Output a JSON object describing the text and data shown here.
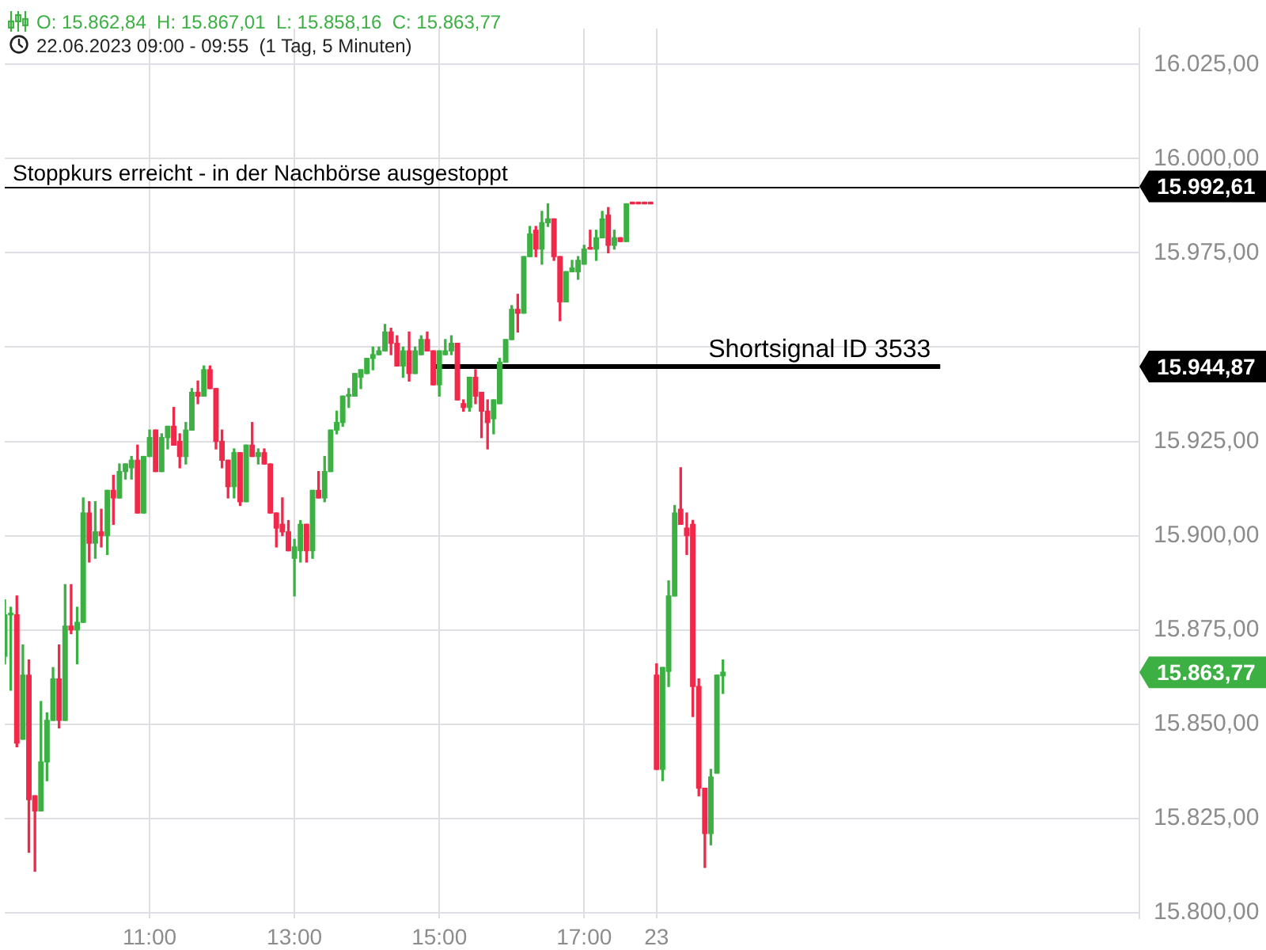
{
  "chart_data": {
    "type": "candlestick",
    "title": "O: 15.862,84  H: 15.867,01  L: 15.858,16  C: 15.863,77",
    "subtitle": "22.06.2023 09:00 - 09:55  (1 Tag, 5 Minuten)",
    "categories": [
      null,
      null,
      null,
      null,
      null,
      null,
      null,
      null,
      null,
      null,
      null,
      null,
      null,
      null,
      null,
      null,
      null,
      null,
      null,
      null,
      null,
      null,
      null,
      null,
      "11:00",
      null,
      null,
      null,
      null,
      null,
      null,
      null,
      null,
      null,
      null,
      null,
      null,
      null,
      null,
      null,
      null,
      null,
      null,
      null,
      null,
      null,
      null,
      null,
      "13:00",
      null,
      null,
      null,
      null,
      null,
      null,
      null,
      null,
      null,
      null,
      null,
      null,
      null,
      null,
      null,
      null,
      null,
      null,
      null,
      null,
      null,
      null,
      null,
      "15:00",
      null,
      null,
      null,
      null,
      null,
      null,
      null,
      null,
      null,
      null,
      null,
      null,
      null,
      null,
      null,
      null,
      null,
      null,
      null,
      null,
      null,
      null,
      null,
      "17:00",
      null,
      null,
      null,
      null,
      null,
      null,
      null,
      null,
      null,
      null,
      null,
      "23",
      null,
      null,
      null,
      null,
      null,
      null,
      null,
      null,
      null,
      null,
      null,
      null,
      null,
      null,
      null,
      null,
      null,
      null,
      null,
      null,
      null,
      null,
      null,
      null,
      null,
      null,
      null,
      null,
      null,
      null,
      null,
      null,
      null,
      null,
      null,
      null,
      null,
      null,
      null,
      null,
      null,
      null,
      null,
      null,
      null,
      null,
      null,
      null,
      null,
      null,
      null,
      null,
      null,
      null,
      null,
      null,
      null,
      null,
      null,
      null,
      null,
      null,
      null,
      null,
      null,
      null,
      null,
      null,
      null,
      null,
      null,
      null,
      null,
      null,
      null,
      null,
      null,
      null,
      null,
      null
    ],
    "ohlc": [
      [
        15868,
        15883,
        15866,
        15879
      ],
      [
        15879,
        15881,
        15859,
        15879
      ],
      [
        15879,
        15884,
        15844,
        15845
      ],
      [
        15846,
        15871,
        15846,
        15863
      ],
      [
        15863,
        15867,
        15816,
        15830
      ],
      [
        15831,
        15831,
        15811,
        15827
      ],
      [
        15827,
        15856,
        15827,
        15840
      ],
      [
        15840,
        15853,
        15835,
        15851
      ],
      [
        15851,
        15865,
        15851,
        15862
      ],
      [
        15862,
        15871,
        15849,
        15851
      ],
      [
        15851,
        15887,
        15851,
        15876
      ],
      [
        15876,
        15887,
        15874,
        15875
      ],
      [
        15875,
        15881,
        15866,
        15877
      ],
      [
        15877,
        15910,
        15877,
        15906
      ],
      [
        15906,
        15909,
        15893,
        15898
      ],
      [
        15898,
        15909,
        15894,
        15901
      ],
      [
        15901,
        15907,
        15897,
        15900
      ],
      [
        15900,
        15912,
        15895,
        15912
      ],
      [
        15912,
        15916,
        15903,
        15910
      ],
      [
        15910,
        15919,
        15910,
        15917
      ],
      [
        15917,
        15919,
        15915,
        15919
      ],
      [
        15918,
        15921,
        15915,
        15920
      ],
      [
        15920,
        15924,
        15906,
        15906
      ],
      [
        15906,
        15921,
        15906,
        15921
      ],
      [
        15921,
        15928,
        15921,
        15926
      ],
      [
        15928,
        15928,
        15917,
        15917
      ],
      [
        15917,
        15927,
        15917,
        15926
      ],
      [
        15926,
        15929,
        15923,
        15929
      ],
      [
        15929,
        15934,
        15924,
        15924
      ],
      [
        15925,
        15927,
        15918,
        15921
      ],
      [
        15921,
        15930,
        15919,
        15928
      ],
      [
        15928,
        15939,
        15928,
        15938
      ],
      [
        15938,
        15941,
        15935,
        15937
      ],
      [
        15937,
        15945,
        15937,
        15944
      ],
      [
        15944,
        15945,
        15939,
        15939
      ],
      [
        15939,
        15939,
        15923,
        15925
      ],
      [
        15925,
        15928,
        15918,
        15920
      ],
      [
        15920,
        15920,
        15910,
        15913
      ],
      [
        15913,
        15923,
        15910,
        15922
      ],
      [
        15922,
        15922,
        15908,
        15909
      ],
      [
        15909,
        15924,
        15909,
        15924
      ],
      [
        15924,
        15930,
        15921,
        15921
      ],
      [
        15921,
        15923,
        15919,
        15922
      ],
      [
        15922,
        15923,
        15919,
        15919
      ],
      [
        15919,
        15919,
        15906,
        15906
      ],
      [
        15906,
        15906,
        15897,
        15902
      ],
      [
        15903,
        15910,
        15900,
        15901
      ],
      [
        15901,
        15904,
        15896,
        15896
      ],
      [
        15894,
        15899,
        15884,
        15897
      ],
      [
        15896,
        15904,
        15893,
        15903
      ],
      [
        15903,
        15903,
        15893,
        15896
      ],
      [
        15896,
        15912,
        15894,
        15912
      ],
      [
        15912,
        15917,
        15910,
        15910
      ],
      [
        15910,
        15921,
        15909,
        15917
      ],
      [
        15917,
        15928,
        15917,
        15928
      ],
      [
        15928,
        15933,
        15927,
        15930
      ],
      [
        15930,
        15937,
        15929,
        15937
      ],
      [
        15937,
        15939,
        15934,
        15937
      ],
      [
        15937,
        15943,
        15937,
        15943
      ],
      [
        15942,
        15944,
        15939,
        15944
      ],
      [
        15943,
        15947,
        15943,
        15947
      ],
      [
        15947,
        15950,
        15944,
        15948
      ],
      [
        15948,
        15950,
        15948,
        15949
      ],
      [
        15949,
        15956,
        15949,
        15954
      ],
      [
        15954,
        15955,
        15948,
        15951
      ],
      [
        15951,
        15953,
        15945,
        15945
      ],
      [
        15945,
        15950,
        15942,
        15949
      ],
      [
        15949,
        15954,
        15941,
        15943
      ],
      [
        15943,
        15950,
        15943,
        15949
      ],
      [
        15948,
        15953,
        15948,
        15952
      ],
      [
        15952,
        15954,
        15949,
        15949
      ],
      [
        15949,
        15949,
        15940,
        15940
      ],
      [
        15940,
        15949,
        15937,
        15949
      ],
      [
        15948,
        15952,
        15948,
        15949
      ],
      [
        15949,
        15953,
        15948,
        15951
      ],
      [
        15951,
        15951,
        15936,
        15936
      ],
      [
        15935,
        15936,
        15933,
        15934
      ],
      [
        15934,
        15942,
        15933,
        15942
      ],
      [
        15942,
        15944,
        15935,
        15937
      ],
      [
        15938,
        15938,
        15926,
        15933
      ],
      [
        15933,
        15936,
        15923,
        15930
      ],
      [
        15931,
        15936,
        15927,
        15936
      ],
      [
        15935,
        15947,
        15935,
        15946
      ],
      [
        15946,
        15952,
        15946,
        15952
      ],
      [
        15952,
        15961,
        15952,
        15960
      ],
      [
        15960,
        15964,
        15954,
        15959
      ],
      [
        15959,
        15974,
        15959,
        15974
      ],
      [
        15974,
        15982,
        15974,
        15980
      ],
      [
        15981,
        15982,
        15974,
        15976
      ],
      [
        15976,
        15986,
        15972,
        15983
      ],
      [
        15983,
        15988,
        15982,
        15984
      ],
      [
        15984,
        15984,
        15973,
        15974
      ],
      [
        15974,
        15974,
        15957,
        15962
      ],
      [
        15962,
        15970,
        15962,
        15970
      ],
      [
        15970,
        15973,
        15970,
        15971
      ],
      [
        15970,
        15974,
        15968,
        15973
      ],
      [
        15972,
        15977,
        15972,
        15976
      ],
      [
        15976,
        15981,
        15976,
        15976
      ],
      [
        15976,
        15981,
        15973,
        15979
      ],
      [
        15979,
        15986,
        15979,
        15984
      ],
      [
        15985,
        15987,
        15975,
        15977
      ],
      [
        15977,
        15981,
        15976,
        15979
      ],
      [
        15979,
        15979,
        15978,
        15978
      ],
      [
        15978,
        15988,
        15978,
        15988
      ],
      [
        15988,
        15988,
        15988,
        15988
      ],
      [
        15988,
        15988,
        15988,
        15988
      ],
      [
        15988,
        15988,
        15988,
        15988
      ],
      [
        15988,
        15988,
        15988,
        15988
      ],
      [
        15863,
        15866,
        15838,
        15838
      ],
      [
        15838,
        15865,
        15835,
        15865
      ],
      [
        15864,
        15888,
        15860,
        15884
      ],
      [
        15884,
        15908,
        15884,
        15906
      ],
      [
        15907,
        15918,
        15903,
        15903
      ],
      [
        15902,
        15906,
        15895,
        15900
      ],
      [
        15903,
        15904,
        15852,
        15860
      ],
      [
        15860,
        15862,
        15831,
        15833
      ],
      [
        15833,
        15833,
        15812,
        15821
      ],
      [
        15821,
        15838,
        15818,
        15836
      ],
      [
        15837,
        15863,
        15837,
        15863
      ],
      [
        15862.84,
        15867.01,
        15858.16,
        15863.77
      ],
      null,
      null,
      null,
      null,
      null,
      null,
      null,
      null,
      null,
      null,
      null,
      null,
      null,
      null,
      null,
      null,
      null,
      null,
      null,
      null,
      null,
      null,
      null,
      null,
      null,
      null,
      null,
      null,
      null,
      null,
      null,
      null,
      null,
      null,
      null,
      null,
      null,
      null,
      null,
      null,
      null,
      null,
      null,
      null,
      null,
      null,
      null,
      null,
      null,
      null,
      null,
      null,
      null,
      null,
      null,
      null,
      null,
      null,
      null,
      null,
      null,
      null,
      null,
      null,
      null,
      null,
      null,
      null,
      null
    ],
    "value_labels": [
      null,
      null,
      null,
      null,
      null,
      null,
      null,
      null,
      null,
      null,
      null,
      null,
      null,
      null,
      null,
      null,
      null,
      null,
      null,
      null,
      null,
      null,
      null,
      null,
      null,
      null,
      null,
      null,
      null,
      null,
      null,
      null,
      null,
      null,
      null,
      null,
      null,
      null,
      null,
      null,
      null,
      null,
      null,
      null,
      null,
      null,
      null,
      null,
      null,
      null,
      null,
      null,
      null,
      null,
      null,
      null,
      null,
      null,
      null,
      null,
      null,
      null,
      null,
      null,
      null,
      null,
      null,
      null,
      null,
      null,
      null,
      null,
      null,
      null,
      null,
      null,
      null,
      null,
      null,
      null,
      null,
      null,
      null,
      null,
      null,
      null,
      null,
      null,
      null,
      null,
      null,
      null,
      null,
      null,
      null,
      null,
      null,
      null,
      null,
      null,
      null,
      null,
      null,
      null,
      null,
      null,
      null,
      null,
      null,
      null,
      null,
      null,
      null,
      null,
      null,
      null,
      null,
      null,
      null,
      "15.863,77",
      null,
      null,
      null,
      null,
      null,
      null,
      null,
      null,
      null,
      null,
      null,
      null,
      null,
      null,
      null,
      null,
      null,
      null,
      null,
      null,
      null,
      null,
      null,
      null,
      null,
      null,
      null,
      null,
      null,
      null,
      null,
      null,
      null,
      null,
      null,
      null,
      null,
      null,
      null,
      null,
      null,
      null,
      null,
      null,
      null,
      null,
      null,
      null,
      null,
      null,
      null,
      null,
      null,
      null,
      null,
      null,
      null,
      null,
      null,
      null,
      null,
      null,
      null,
      null,
      null,
      null,
      null,
      null,
      null
    ],
    "colors": [
      "#3cb043",
      "#3cb043",
      "#f0284a",
      "#3cb043",
      "#f0284a",
      "#f0284a",
      "#3cb043",
      "#3cb043",
      "#3cb043",
      "#f0284a",
      "#3cb043",
      "#f0284a",
      "#3cb043",
      "#3cb043",
      "#f0284a",
      "#3cb043",
      "#f0284a",
      "#3cb043",
      "#f0284a",
      "#3cb043",
      "#3cb043",
      "#3cb043",
      "#f0284a",
      "#3cb043",
      "#3cb043",
      "#f0284a",
      "#3cb043",
      "#3cb043",
      "#f0284a",
      "#f0284a",
      "#3cb043",
      "#3cb043",
      "#f0284a",
      "#3cb043",
      "#f0284a",
      "#f0284a",
      "#f0284a",
      "#f0284a",
      "#3cb043",
      "#f0284a",
      "#3cb043",
      "#f0284a",
      "#3cb043",
      "#f0284a",
      "#f0284a",
      "#f0284a",
      "#f0284a",
      "#f0284a",
      "#3cb043",
      "#3cb043",
      "#f0284a",
      "#3cb043",
      "#f0284a",
      "#3cb043",
      "#3cb043",
      "#3cb043",
      "#3cb043",
      "#3cb043",
      "#3cb043",
      "#3cb043",
      "#3cb043",
      "#3cb043",
      "#3cb043",
      "#3cb043",
      "#f0284a",
      "#f0284a",
      "#3cb043",
      "#f0284a",
      "#3cb043",
      "#3cb043",
      "#f0284a",
      "#f0284a",
      "#3cb043",
      "#3cb043",
      "#3cb043",
      "#f0284a",
      "#f0284a",
      "#3cb043",
      "#f0284a",
      "#f0284a",
      "#f0284a",
      "#3cb043",
      "#3cb043",
      "#3cb043",
      "#3cb043",
      "#f0284a",
      "#3cb043",
      "#3cb043",
      "#f0284a",
      "#3cb043",
      "#3cb043",
      "#f0284a",
      "#f0284a",
      "#3cb043",
      "#3cb043",
      "#3cb043",
      "#3cb043",
      "#f0284a",
      "#3cb043",
      "#3cb043",
      "#f0284a",
      "#3cb043",
      "#f0284a",
      "#3cb043",
      "#f0284a",
      "#f0284a",
      "#f0284a",
      "#f0284a",
      "#f0284a",
      "#3cb043",
      "#3cb043",
      "#3cb043",
      "#f0284a",
      "#f0284a",
      "#f0284a",
      "#f0284a",
      "#f0284a",
      "#3cb043",
      "#3cb043",
      "#3cb043",
      null,
      null,
      null,
      null,
      null,
      null,
      null,
      null,
      null,
      null,
      null,
      null,
      null,
      null,
      null,
      null,
      null,
      null,
      null,
      null,
      null,
      null,
      null,
      null,
      null,
      null,
      null,
      null,
      null,
      null,
      null,
      null,
      null,
      null,
      null,
      null,
      null,
      null,
      null,
      null,
      null,
      null,
      null,
      null,
      null,
      null,
      null,
      null,
      null,
      null,
      null,
      null,
      null,
      null,
      null,
      null,
      null,
      null,
      null,
      null,
      null,
      null,
      null,
      null,
      null,
      null,
      null,
      null,
      null
    ],
    "series": [
      {
        "type": "line",
        "color": "#000000",
        "values": [
          null,
          null,
          null,
          null,
          null,
          null,
          null,
          null,
          null,
          null,
          null,
          null,
          null,
          null,
          null,
          null,
          null,
          null,
          null,
          null,
          null,
          null,
          null,
          null,
          null,
          null,
          null,
          null,
          null,
          null,
          null,
          null,
          null,
          null,
          null,
          null,
          null,
          null,
          null,
          null,
          null,
          null,
          null,
          null,
          null,
          null,
          null,
          null,
          null,
          null,
          null,
          null,
          null,
          null,
          null,
          null,
          null,
          null,
          null,
          null,
          null,
          null,
          null,
          null,
          null,
          null,
          null,
          null,
          null,
          null,
          null,
          15944.87,
          15944.87,
          15944.87,
          15944.87,
          15944.87,
          15944.87,
          15944.87,
          15944.87,
          15944.87,
          15944.87,
          15944.87,
          15944.87,
          15944.87,
          15944.87,
          15944.87,
          15944.87,
          15944.87,
          15944.87,
          15944.87,
          15944.87,
          15944.87,
          15944.87,
          15944.87,
          15944.87,
          15944.87,
          15944.87,
          15944.87,
          15944.87,
          15944.87,
          15944.87,
          15944.87,
          15944.87,
          15944.87,
          15944.87,
          15944.87,
          15944.87,
          15944.87,
          15944.87,
          15944.87,
          15944.87,
          15944.87,
          15944.87,
          15944.87,
          15944.87,
          15944.87,
          15944.87,
          15944.87,
          15944.87,
          15944.87,
          15944.87,
          15944.87,
          15944.87,
          15944.87,
          15944.87,
          15944.87,
          15944.87,
          15944.87,
          15944.87,
          15944.87,
          15944.87,
          15944.87,
          15944.87,
          15944.87,
          15944.87,
          15944.87,
          15944.87,
          15944.87,
          15944.87,
          15944.87,
          15944.87,
          15944.87,
          15944.87,
          15944.87,
          15944.87,
          15944.87,
          15944.87,
          15944.87,
          15944.87,
          15944.87,
          15944.87,
          15944.87,
          15944.87,
          15944.87,
          15944.87,
          15944.87,
          null,
          null,
          null,
          null,
          null,
          null,
          null,
          null,
          null,
          null,
          null,
          null,
          null,
          null,
          null,
          null,
          null,
          null,
          null,
          null,
          null,
          null,
          null,
          null,
          null,
          null,
          null,
          null,
          null,
          null,
          null,
          null,
          null
        ]
      }
    ],
    "ylim": [
      15798.5,
      16034.5
    ],
    "yticks": [
      {
        "value": 15800,
        "label": "15.800,00"
      },
      {
        "value": 15825,
        "label": "15.825,00"
      },
      {
        "value": 15850,
        "label": "15.850,00"
      },
      {
        "value": 15875,
        "label": "15.875,00"
      },
      {
        "value": 15900,
        "label": "15.900,00"
      },
      {
        "value": 15925,
        "label": "15.925,00"
      },
      {
        "value": 15944.87,
        "label": "15.944,87"
      },
      {
        "value": 15950,
        "label": null
      },
      {
        "value": 15975,
        "label": "15.975,00"
      },
      {
        "value": 16000,
        "label": "16.000,00"
      },
      {
        "value": 16025,
        "label": "16.025,00"
      }
    ],
    "grid": true,
    "ref_lines": [
      {
        "axis": "y",
        "value": 15992.61,
        "label": "15.992,61",
        "color": "#000000"
      }
    ],
    "annotations": [
      {
        "text": "Stoppkurs erreicht - in der Nachbörse ausgestoppt",
        "y": 15992.61
      },
      {
        "text": "Shortsignal ID 3533",
        "y": 15944.87
      }
    ]
  }
}
